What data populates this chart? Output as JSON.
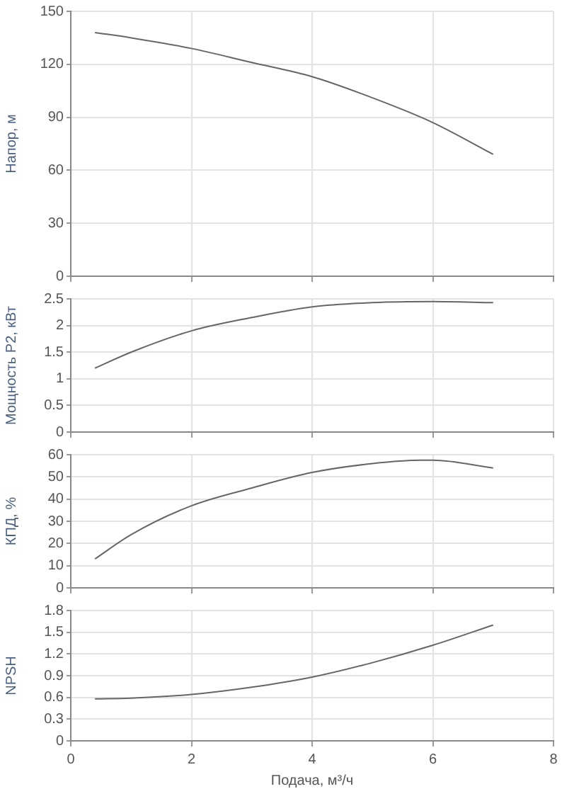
{
  "chart_data": [
    {
      "type": "line",
      "ylabel": "Напор, м",
      "series": [
        {
          "color": "#666666",
          "x": [
            0.4,
            1,
            2,
            3,
            4,
            5,
            6,
            7
          ],
          "values": [
            138,
            135,
            129,
            121,
            113,
            101,
            87,
            69
          ]
        }
      ],
      "xlim": [
        0,
        8
      ],
      "xticks": [
        0,
        2,
        4,
        6,
        8
      ],
      "ylim": [
        0,
        150
      ],
      "yticks": [
        0,
        30,
        60,
        90,
        120,
        150
      ],
      "grid": true,
      "tick_labels": "y",
      "marker": "none",
      "line_style": "solid"
    },
    {
      "type": "line",
      "ylabel": "Мощность P2, кВт",
      "series": [
        {
          "color": "#666666",
          "x": [
            0.4,
            1,
            2,
            3,
            4,
            5,
            6,
            7
          ],
          "values": [
            1.2,
            1.5,
            1.9,
            2.15,
            2.35,
            2.43,
            2.45,
            2.43
          ]
        }
      ],
      "xlim": [
        0,
        8
      ],
      "xticks": [
        0,
        2,
        4,
        6,
        8
      ],
      "ylim": [
        0,
        2.5
      ],
      "yticks": [
        0,
        0.5,
        1,
        1.5,
        2,
        2.5
      ],
      "grid": true,
      "tick_labels": "y",
      "marker": "none",
      "line_style": "solid"
    },
    {
      "type": "line",
      "ylabel": "КПД, %",
      "series": [
        {
          "color": "#666666",
          "x": [
            0.4,
            1,
            2,
            3,
            4,
            5,
            5.8,
            6,
            7
          ],
          "values": [
            13,
            24,
            37,
            45,
            52,
            56,
            57.5,
            57.5,
            54
          ]
        }
      ],
      "xlim": [
        0,
        8
      ],
      "xticks": [
        0,
        2,
        4,
        6,
        8
      ],
      "ylim": [
        0,
        60
      ],
      "yticks": [
        0,
        10,
        20,
        30,
        40,
        50,
        60
      ],
      "grid": true,
      "tick_labels": "y",
      "marker": "none",
      "line_style": "solid"
    },
    {
      "type": "line",
      "xlabel": "Подача, м³/ч",
      "ylabel": "NPSH",
      "series": [
        {
          "color": "#666666",
          "x": [
            0.4,
            1,
            2,
            3,
            4,
            5,
            6,
            7
          ],
          "values": [
            0.58,
            0.59,
            0.64,
            0.74,
            0.88,
            1.08,
            1.32,
            1.6
          ]
        }
      ],
      "xlim": [
        0,
        8
      ],
      "xticks": [
        0,
        2,
        4,
        6,
        8
      ],
      "ylim": [
        0,
        1.8
      ],
      "yticks": [
        0,
        0.3,
        0.6,
        0.9,
        1.2,
        1.5,
        1.8
      ],
      "grid": true,
      "marker": "none",
      "line_style": "solid"
    }
  ]
}
